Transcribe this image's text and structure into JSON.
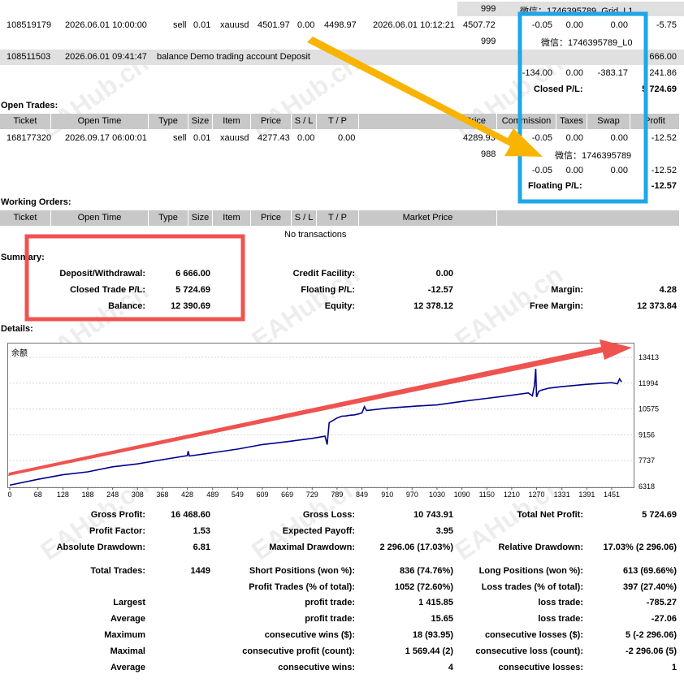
{
  "history": {
    "row0": {
      "c1": "999",
      "c2": "微信：1746395789_Grid_L1"
    },
    "row1": {
      "ticket": "108519179",
      "open_time": "2026.06.01 10:00:00",
      "type": "sell",
      "size": "0.01",
      "item": "xauusd",
      "price": "4501.97",
      "sl": "0.00",
      "tp": "4498.97",
      "close_time": "2026.06.01 10:12:21",
      "close_price": "4507.72",
      "commission": "-0.05",
      "taxes": "0.00",
      "swap": "0.00",
      "profit": "-5.75"
    },
    "row1b": {
      "c1": "999",
      "c2": "微信：1746395789_L0"
    },
    "row2": {
      "ticket": "108511503",
      "open_time": "2026.06.01 09:41:47",
      "type": "balance",
      "comment": "Demo trading account Deposit",
      "profit": "666.00"
    },
    "totals": {
      "commission": "-134.00",
      "taxes": "0.00",
      "swap": "-383.17",
      "profit": "241.86"
    },
    "closed_label": "Closed P/L:",
    "closed_value": "5 724.69"
  },
  "open_trades": {
    "title": "Open Trades:",
    "headers": [
      "Ticket",
      "Open Time",
      "Type",
      "Size",
      "Item",
      "Price",
      "S / L",
      "T / P",
      "Price",
      "Commission",
      "Taxes",
      "Swap",
      "Profit"
    ],
    "row": {
      "ticket": "168177320",
      "open_time": "2026.09.17 06:00:01",
      "type": "sell",
      "size": "0.01",
      "item": "xauusd",
      "price": "4277.43",
      "sl": "0.00",
      "tp": "0.00",
      "cur_price": "4289.93",
      "commission": "-0.05",
      "taxes": "0.00",
      "swap": "0.00",
      "profit": "-12.52"
    },
    "sub": {
      "c1": "988",
      "c2": "微信：1746395789"
    },
    "totals": {
      "commission": "-0.05",
      "taxes": "0.00",
      "swap": "0.00",
      "profit": "-12.52"
    },
    "floating_label": "Floating P/L:",
    "floating_value": "-12.57"
  },
  "working_orders": {
    "title": "Working Orders:",
    "headers": [
      "Ticket",
      "Open Time",
      "Type",
      "Size",
      "Item",
      "Price",
      "S / L",
      "T / P",
      "Market Price"
    ],
    "empty": "No transactions"
  },
  "summary": {
    "title": "Summary:",
    "deposit_label": "Deposit/Withdrawal:",
    "deposit": "6 666.00",
    "closed_label": "Closed Trade P/L:",
    "closed": "5 724.69",
    "balance_label": "Balance:",
    "balance": "12 390.69",
    "credit_label": "Credit Facility:",
    "credit": "0.00",
    "floating_label": "Floating P/L:",
    "floating": "-12.57",
    "equity_label": "Equity:",
    "equity": "12 378.12",
    "margin_label": "Margin:",
    "margin": "4.28",
    "free_margin_label": "Free Margin:",
    "free_margin": "12 373.84"
  },
  "details": {
    "title": "Details:",
    "chart_caption": "余额"
  },
  "chart_data": {
    "type": "line",
    "title": "余额",
    "x_ticks": [
      "0",
      "68",
      "128",
      "188",
      "248",
      "308",
      "368",
      "428",
      "489",
      "549",
      "609",
      "669",
      "729",
      "789",
      "849",
      "910",
      "970",
      "1030",
      "1090",
      "1150",
      "1210",
      "1270",
      "1331",
      "1391",
      "1451"
    ],
    "y_ticks": [
      "13413",
      "11994",
      "10575",
      "9156",
      "7737",
      "6318"
    ],
    "xlim": [
      0,
      1500
    ],
    "ylim": [
      6318,
      13413
    ],
    "line_color": "#00008b",
    "series": [
      {
        "values_x": [
          0,
          68,
          128,
          188,
          248,
          308,
          368,
          428,
          430,
          433,
          489,
          549,
          609,
          669,
          729,
          760,
          765,
          770,
          789,
          800,
          810,
          820,
          830,
          840,
          849,
          855,
          860,
          910,
          970,
          1030,
          1090,
          1150,
          1210,
          1250,
          1260,
          1265,
          1268,
          1270,
          1275,
          1280,
          1300,
          1331,
          1391,
          1451,
          1465,
          1470,
          1475
        ],
        "values_y": [
          6390,
          6710,
          6960,
          7120,
          7400,
          7560,
          7790,
          8010,
          8260,
          7990,
          8170,
          8370,
          8620,
          8780,
          8960,
          9080,
          8620,
          9820,
          10080,
          10180,
          10190,
          10230,
          10250,
          10300,
          10360,
          10700,
          10490,
          10620,
          10720,
          10800,
          10990,
          11160,
          11330,
          11460,
          11300,
          11900,
          12780,
          11230,
          11540,
          11600,
          11720,
          11800,
          11930,
          12020,
          11960,
          12230,
          12060
        ]
      }
    ]
  },
  "stats": {
    "gross_profit_label": "Gross Profit:",
    "gross_profit": "16 468.60",
    "gross_loss_label": "Gross Loss:",
    "gross_loss": "10 743.91",
    "net_profit_label": "Total Net Profit:",
    "net_profit": "5 724.69",
    "profit_factor_label": "Profit Factor:",
    "profit_factor": "1.53",
    "expected_payoff_label": "Expected Payoff:",
    "expected_payoff": "3.95",
    "abs_dd_label": "Absolute Drawdown:",
    "abs_dd": "6.81",
    "max_dd_label": "Maximal Drawdown:",
    "max_dd": "2 296.06 (17.03%)",
    "rel_dd_label": "Relative Drawdown:",
    "rel_dd": "17.03% (2 296.06)",
    "total_trades_label": "Total Trades:",
    "total_trades": "1449",
    "short_label": "Short Positions (won %):",
    "short": "836 (74.76%)",
    "long_label": "Long Positions (won %):",
    "long": "613 (69.66%)",
    "profit_trades_label": "Profit Trades (% of total):",
    "profit_trades": "1052 (72.60%)",
    "loss_trades_label": "Loss trades (% of total):",
    "loss_trades": "397 (27.40%)",
    "largest_label": "Largest",
    "largest_profit_label": "profit trade:",
    "largest_profit": "1 415.85",
    "largest_loss_label": "loss trade:",
    "largest_loss": "-785.27",
    "average_label": "Average",
    "average_profit_label": "profit trade:",
    "average_profit": "15.65",
    "average_loss_label": "loss trade:",
    "average_loss": "-27.06",
    "maximum_label": "Maximum",
    "max_cons_wins_label": "consecutive wins ($):",
    "max_cons_wins": "18 (93.95)",
    "max_cons_losses_label": "consecutive losses ($):",
    "max_cons_losses": "5 (-2 296.06)",
    "maximal_label": "Maximal",
    "maximal_cons_profit_label": "consecutive profit (count):",
    "maximal_cons_profit": "1 569.44 (2)",
    "maximal_cons_loss_label": "consecutive loss (count):",
    "maximal_cons_loss": "-2 296.06 (5)",
    "average2_label": "Average",
    "avg_cons_wins_label": "consecutive wins:",
    "avg_cons_wins": "4",
    "avg_cons_losses_label": "consecutive losses:",
    "avg_cons_losses": "1"
  },
  "watermark": "EAHub.cn",
  "colors": {
    "blue_box": "#1ea7e8",
    "red_box": "#ef5350",
    "arrow_orange": "#f8b400",
    "arrow_red": "#ef5350",
    "header_gray": "#c8c8c8",
    "band_gray": "#e0e0e0"
  }
}
